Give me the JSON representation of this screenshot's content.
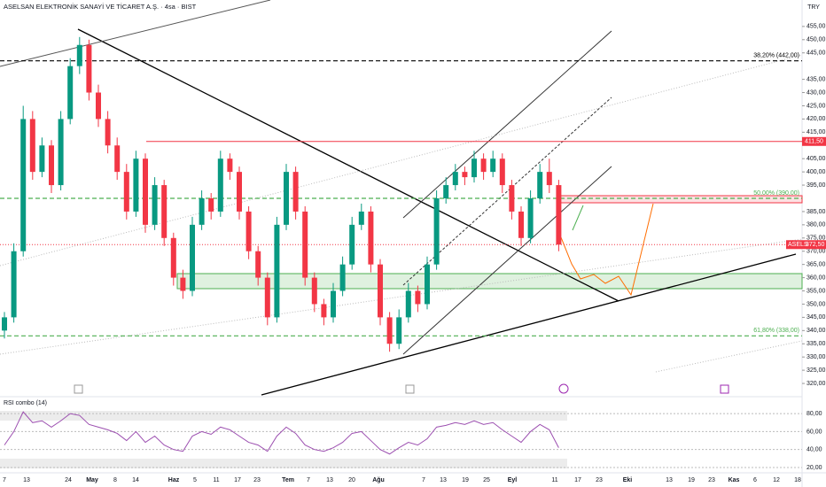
{
  "chart_data": {
    "type": "candlestick",
    "title": "ASELSAN ELEKTRONİK SANAYİ VE TİCARET A.Ş. · 4sa · BIST",
    "currency": "TRY",
    "colors": {
      "up": "#089981",
      "down": "#f23645"
    },
    "ylim": [
      316,
      465
    ],
    "yticks": [
      {
        "value": 320,
        "label": "320,00"
      },
      {
        "value": 325,
        "label": "325,00"
      },
      {
        "value": 330,
        "label": "330,00"
      },
      {
        "value": 335,
        "label": "335,00"
      },
      {
        "value": 340,
        "label": "340,00"
      },
      {
        "value": 345,
        "label": "345,00"
      },
      {
        "value": 350,
        "label": "350,00"
      },
      {
        "value": 355,
        "label": "355,00"
      },
      {
        "value": 360,
        "label": "360,00"
      },
      {
        "value": 365,
        "label": "365,00"
      },
      {
        "value": 370,
        "label": "370,00"
      },
      {
        "value": 375,
        "label": "375,00"
      },
      {
        "value": 380,
        "label": "380,00"
      },
      {
        "value": 385,
        "label": "385,00"
      },
      {
        "value": 395,
        "label": "395,00"
      },
      {
        "value": 400,
        "label": "400,00"
      },
      {
        "value": 405,
        "label": "405,00"
      },
      {
        "value": 415,
        "label": "415,00"
      },
      {
        "value": 420,
        "label": "420,00"
      },
      {
        "value": 425,
        "label": "425,00"
      },
      {
        "value": 430,
        "label": "430,00"
      },
      {
        "value": 435,
        "label": "435,00"
      },
      {
        "value": 445,
        "label": "445,00"
      },
      {
        "value": 450,
        "label": "450,00"
      },
      {
        "value": 455,
        "label": "455,00"
      }
    ],
    "levels": [
      {
        "value": 442,
        "label": "38,20% (442,00)",
        "color": "#000000",
        "style": "dashed"
      },
      {
        "value": 411.5,
        "label": "411,50",
        "color": "#f23645",
        "style": "solid"
      },
      {
        "value": 390,
        "label": "50,00% (390,00)",
        "color": "#4caf50",
        "style": "dashed"
      },
      {
        "value": 338,
        "label": "61,80% (338,00)",
        "color": "#4caf50",
        "style": "dashed"
      }
    ],
    "last_price": {
      "symbol": "ASELS",
      "value": 372.5,
      "label": "372,50"
    },
    "xticks": [
      "7",
      "13",
      "24",
      "May",
      "8",
      "14",
      "Haz",
      "5",
      "11",
      "17",
      "23",
      "Tem",
      "7",
      "13",
      "20",
      "Ağu",
      "7",
      "13",
      "19",
      "25",
      "Eyl",
      "11",
      "17",
      "23",
      "Eki",
      "13",
      "19",
      "23",
      "Kas",
      "6",
      "12",
      "18"
    ],
    "ohlc": [
      [
        340,
        347,
        337,
        345
      ],
      [
        345,
        373,
        343,
        370
      ],
      [
        370,
        425,
        368,
        420
      ],
      [
        420,
        423,
        397,
        400
      ],
      [
        400,
        413,
        398,
        410
      ],
      [
        410,
        412,
        392,
        395
      ],
      [
        395,
        423,
        393,
        420
      ],
      [
        420,
        443,
        418,
        440
      ],
      [
        440,
        451,
        437,
        448
      ],
      [
        448,
        450,
        427,
        430
      ],
      [
        430,
        433,
        417,
        420
      ],
      [
        420,
        423,
        407,
        410
      ],
      [
        410,
        413,
        397,
        400
      ],
      [
        400,
        403,
        382,
        385
      ],
      [
        385,
        408,
        383,
        405
      ],
      [
        405,
        407,
        377,
        380
      ],
      [
        380,
        398,
        378,
        395
      ],
      [
        395,
        397,
        372,
        375
      ],
      [
        375,
        377,
        357,
        360
      ],
      [
        360,
        363,
        352,
        355
      ],
      [
        355,
        383,
        353,
        380
      ],
      [
        380,
        393,
        378,
        390
      ],
      [
        390,
        392,
        382,
        385
      ],
      [
        385,
        408,
        383,
        405
      ],
      [
        405,
        407,
        397,
        400
      ],
      [
        400,
        402,
        382,
        385
      ],
      [
        385,
        387,
        367,
        370
      ],
      [
        370,
        372,
        357,
        360
      ],
      [
        360,
        362,
        342,
        345
      ],
      [
        345,
        383,
        343,
        380
      ],
      [
        380,
        403,
        378,
        400
      ],
      [
        400,
        402,
        382,
        385
      ],
      [
        385,
        387,
        357,
        360
      ],
      [
        360,
        362,
        347,
        350
      ],
      [
        350,
        352,
        342,
        345
      ],
      [
        345,
        358,
        343,
        355
      ],
      [
        355,
        368,
        353,
        365
      ],
      [
        365,
        383,
        363,
        380
      ],
      [
        380,
        388,
        378,
        385
      ],
      [
        385,
        387,
        362,
        365
      ],
      [
        365,
        367,
        342,
        345
      ],
      [
        345,
        347,
        332,
        335
      ],
      [
        335,
        348,
        333,
        345
      ],
      [
        345,
        358,
        343,
        355
      ],
      [
        355,
        357,
        347,
        350
      ],
      [
        350,
        368,
        348,
        365
      ],
      [
        365,
        393,
        363,
        390
      ],
      [
        390,
        398,
        388,
        395
      ],
      [
        395,
        403,
        393,
        400
      ],
      [
        400,
        402,
        395,
        398
      ],
      [
        398,
        408,
        396,
        405
      ],
      [
        405,
        407,
        397,
        400
      ],
      [
        400,
        408,
        398,
        405
      ],
      [
        405,
        407,
        392,
        395
      ],
      [
        395,
        397,
        382,
        385
      ],
      [
        385,
        387,
        372,
        375
      ],
      [
        375,
        393,
        373,
        390
      ],
      [
        390,
        403,
        388,
        400
      ],
      [
        400,
        405,
        392,
        395
      ],
      [
        395,
        397,
        370,
        372.5
      ]
    ],
    "rsi": {
      "title": "RSI combo (14)",
      "color": "#9c4fb0",
      "ylim": [
        16,
        92
      ],
      "yticks": [
        {
          "value": 20,
          "label": "20,00"
        },
        {
          "value": 40,
          "label": "40,00"
        },
        {
          "value": 60,
          "label": "60,00"
        },
        {
          "value": 80,
          "label": "80,00"
        }
      ],
      "values": [
        45,
        60,
        82,
        70,
        72,
        65,
        72,
        80,
        78,
        68,
        65,
        62,
        58,
        50,
        60,
        48,
        55,
        45,
        40,
        38,
        55,
        60,
        57,
        65,
        62,
        55,
        48,
        45,
        38,
        55,
        65,
        58,
        45,
        40,
        38,
        42,
        48,
        58,
        60,
        50,
        40,
        35,
        42,
        48,
        45,
        52,
        65,
        67,
        70,
        68,
        72,
        68,
        70,
        62,
        55,
        48,
        60,
        68,
        62,
        42
      ]
    }
  }
}
